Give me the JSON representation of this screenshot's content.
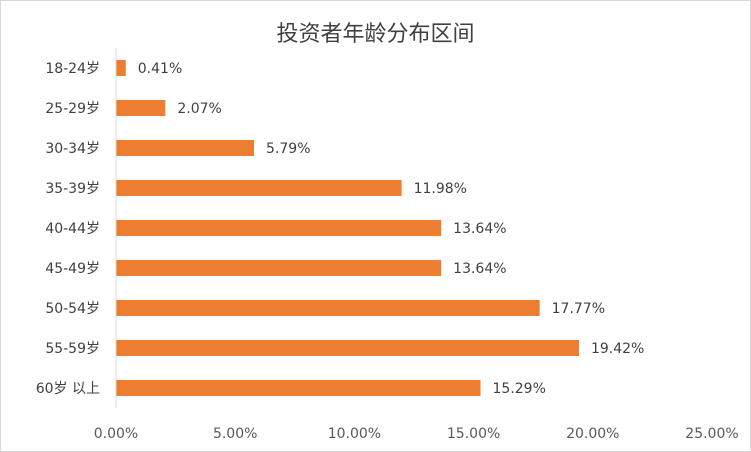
{
  "chart_data": {
    "type": "bar",
    "orientation": "horizontal",
    "title": "投资者年龄分布区间",
    "categories": [
      "18-24岁",
      "25-29岁",
      "30-34岁",
      "35-39岁",
      "40-44岁",
      "45-49岁",
      "50-54岁",
      "55-59岁",
      "60岁 以上"
    ],
    "values": [
      0.41,
      2.07,
      5.79,
      11.98,
      13.64,
      13.64,
      17.77,
      19.42,
      15.29
    ],
    "value_labels": [
      "0.41%",
      "2.07%",
      "5.79%",
      "11.98%",
      "13.64%",
      "13.64%",
      "17.77%",
      "19.42%",
      "15.29%"
    ],
    "x_ticks": [
      "0.00%",
      "5.00%",
      "10.00%",
      "15.00%",
      "20.00%",
      "25.00%"
    ],
    "xlim": [
      0,
      25
    ],
    "xlabel": "",
    "ylabel": "",
    "grid": false,
    "legend": "none",
    "bar_color": "#ED7D31"
  }
}
